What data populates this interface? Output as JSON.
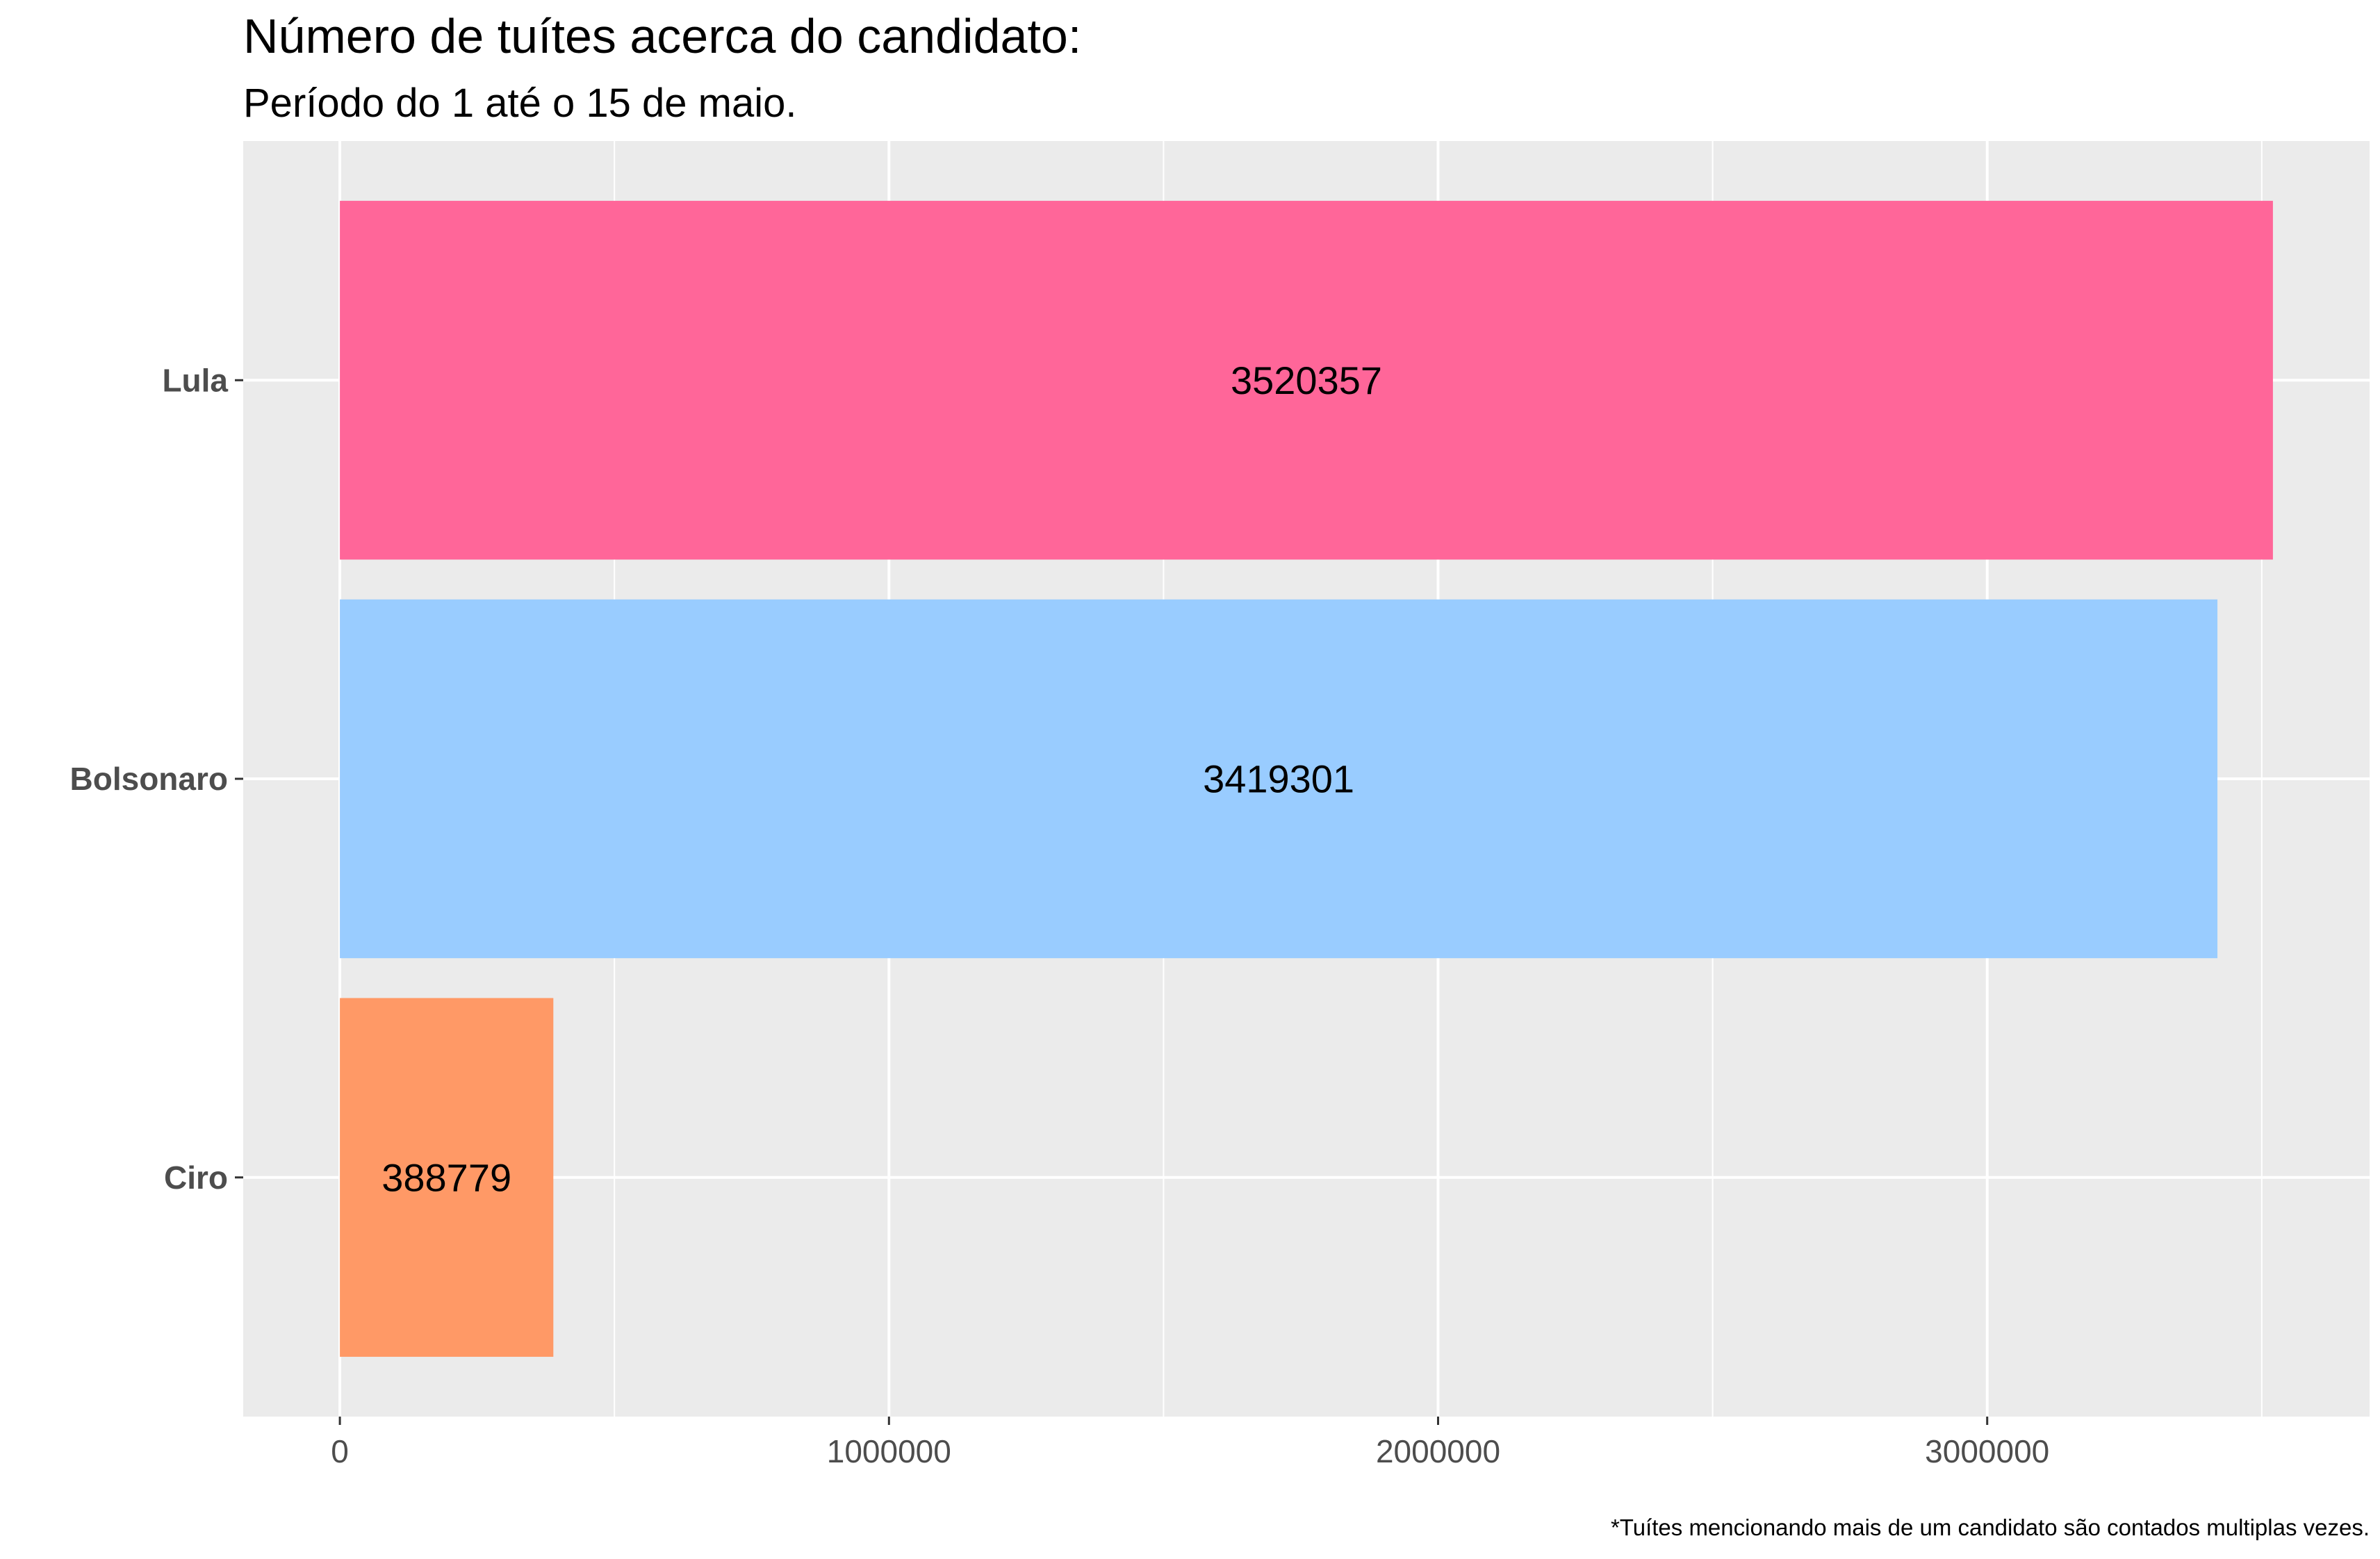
{
  "chart_data": {
    "type": "bar",
    "orientation": "horizontal",
    "title": "Número de tuítes acerca do candidato:",
    "subtitle": "Período do 1 até o 15 de maio.",
    "caption": "*Tuítes mencionando mais de um candidato são contados multiplas vezes.",
    "xlabel": "",
    "ylabel": "",
    "categories": [
      "Lula",
      "Bolsonaro",
      "Ciro"
    ],
    "values": [
      3520357,
      3419301,
      388779
    ],
    "data_labels": [
      "3520357",
      "3419301",
      "388779"
    ],
    "colors": [
      "#ff6699",
      "#99ccff",
      "#ff9966"
    ],
    "xlim": [
      -176018,
      3696375
    ],
    "x_major_ticks": [
      0,
      1000000,
      2000000,
      3000000
    ],
    "x_tick_labels": [
      "0",
      "1000000",
      "2000000",
      "3000000"
    ],
    "x_minor_ticks": [
      500000,
      1500000,
      2500000,
      3500000
    ],
    "grid": true,
    "panel_background": "#ebebeb",
    "grid_color": "#ffffff"
  }
}
